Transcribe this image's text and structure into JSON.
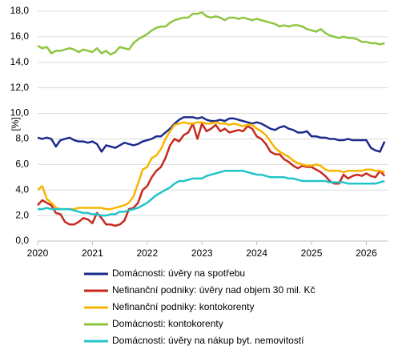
{
  "chart_data": {
    "type": "line",
    "y_label": "[%]",
    "x": [
      2020,
      2020.083,
      2020.167,
      2020.25,
      2020.333,
      2020.417,
      2020.5,
      2020.583,
      2020.667,
      2020.75,
      2020.833,
      2020.917,
      2021,
      2021.083,
      2021.167,
      2021.25,
      2021.333,
      2021.417,
      2021.5,
      2021.583,
      2021.667,
      2021.75,
      2021.833,
      2021.917,
      2022,
      2022.083,
      2022.167,
      2022.25,
      2022.333,
      2022.417,
      2022.5,
      2022.583,
      2022.667,
      2022.75,
      2022.833,
      2022.917,
      2023,
      2023.083,
      2023.167,
      2023.25,
      2023.333,
      2023.417,
      2023.5,
      2023.583,
      2023.667,
      2023.75,
      2023.833,
      2023.917,
      2024,
      2024.083,
      2024.167,
      2024.25,
      2024.333,
      2024.417,
      2024.5,
      2024.583,
      2024.667,
      2024.75,
      2024.833,
      2024.917,
      2025,
      2025.083,
      2025.167,
      2025.25,
      2025.333,
      2025.417,
      2025.5,
      2025.583,
      2025.667,
      2025.75,
      2025.833,
      2025.917,
      2026,
      2026.083,
      2026.167,
      2026.25,
      2026.333
    ],
    "xlim": [
      2020,
      2026.4
    ],
    "xticks": [
      2020,
      2021,
      2022,
      2023,
      2024,
      2025,
      2026
    ],
    "ylim": [
      0,
      18
    ],
    "yticks": [
      {
        "value": 0,
        "label": "0,0"
      },
      {
        "value": 2,
        "label": "2,0"
      },
      {
        "value": 4,
        "label": "4,0"
      },
      {
        "value": 6,
        "label": "6,0"
      },
      {
        "value": 8,
        "label": "8,0"
      },
      {
        "value": 10,
        "label": "10,0"
      },
      {
        "value": 12,
        "label": "12,0"
      },
      {
        "value": 14,
        "label": "14,0"
      },
      {
        "value": 16,
        "label": "16,0"
      },
      {
        "value": 18,
        "label": "18,0"
      }
    ],
    "grid": true,
    "series": [
      {
        "name": "Domácnosti: úvěry na spotřebu",
        "color": "#1f2a8f",
        "values": [
          8.1,
          8.0,
          8.1,
          8.0,
          7.4,
          7.9,
          8.0,
          8.1,
          7.9,
          7.8,
          7.8,
          7.7,
          7.8,
          7.6,
          7.0,
          7.5,
          7.4,
          7.3,
          7.5,
          7.7,
          7.6,
          7.5,
          7.6,
          7.8,
          7.9,
          8.0,
          8.2,
          8.2,
          8.5,
          8.8,
          9.2,
          9.5,
          9.7,
          9.7,
          9.7,
          9.6,
          9.7,
          9.5,
          9.4,
          9.4,
          9.5,
          9.4,
          9.6,
          9.6,
          9.5,
          9.4,
          9.3,
          9.2,
          9.3,
          9.2,
          9.0,
          8.8,
          8.7,
          8.9,
          9.0,
          8.8,
          8.7,
          8.5,
          8.5,
          8.6,
          8.2,
          8.2,
          8.1,
          8.1,
          8.0,
          8.0,
          7.9,
          7.9,
          8.0,
          7.9,
          7.9,
          7.9,
          7.9,
          7.3,
          7.1,
          7.0,
          7.8
        ]
      },
      {
        "name": "Nefinanční podniky: úvěry nad objem 30 mil. Kč",
        "color": "#c62a1e",
        "values": [
          2.8,
          3.2,
          3.0,
          2.8,
          2.2,
          2.1,
          1.5,
          1.3,
          1.3,
          1.5,
          1.8,
          1.7,
          1.4,
          2.2,
          1.8,
          1.3,
          1.3,
          1.2,
          1.3,
          1.6,
          2.5,
          2.6,
          3.0,
          4.0,
          4.3,
          5.0,
          5.5,
          5.8,
          6.5,
          7.5,
          8.0,
          7.8,
          8.3,
          8.5,
          9.2,
          8.0,
          9.2,
          8.6,
          8.8,
          9.1,
          8.6,
          8.8,
          8.5,
          8.6,
          8.7,
          8.6,
          9.0,
          8.8,
          8.2,
          8.0,
          7.6,
          7.0,
          6.8,
          6.8,
          6.4,
          6.2,
          5.9,
          5.7,
          5.9,
          5.8,
          5.8,
          5.6,
          5.4,
          5.1,
          4.7,
          4.5,
          4.5,
          5.2,
          4.9,
          5.1,
          5.2,
          5.1,
          5.3,
          5.1,
          5.0,
          5.5,
          5.1
        ]
      },
      {
        "name": "Nefinanční podniky: kontokorenty",
        "color": "#f7b500",
        "values": [
          4.0,
          4.3,
          3.3,
          3.0,
          2.6,
          2.5,
          2.5,
          2.5,
          2.5,
          2.6,
          2.6,
          2.6,
          2.6,
          2.6,
          2.6,
          2.5,
          2.5,
          2.6,
          2.7,
          2.8,
          3.0,
          3.5,
          4.5,
          5.6,
          5.8,
          6.5,
          6.7,
          7.2,
          8.0,
          8.6,
          9.1,
          9.2,
          9.3,
          9.2,
          9.2,
          9.3,
          9.3,
          9.2,
          9.2,
          9.3,
          9.2,
          9.2,
          9.1,
          9.2,
          9.1,
          9.0,
          9.1,
          9.1,
          8.8,
          8.6,
          8.3,
          7.8,
          7.3,
          7.0,
          6.8,
          6.6,
          6.3,
          6.1,
          6.0,
          5.9,
          5.9,
          6.0,
          5.9,
          5.6,
          5.5,
          5.5,
          5.5,
          5.4,
          5.5,
          5.5,
          5.5,
          5.5,
          5.6,
          5.6,
          5.5,
          5.5,
          5.4
        ]
      },
      {
        "name": "Domácnosti: kontokorenty",
        "color": "#8dc63f",
        "values": [
          15.3,
          15.1,
          15.2,
          14.7,
          14.9,
          14.9,
          15.0,
          15.1,
          15.0,
          14.8,
          15.0,
          14.9,
          14.8,
          15.1,
          14.7,
          14.9,
          14.6,
          14.8,
          15.2,
          15.1,
          15.0,
          15.5,
          15.8,
          16.0,
          16.2,
          16.5,
          16.7,
          16.8,
          16.8,
          17.1,
          17.3,
          17.4,
          17.5,
          17.5,
          17.8,
          17.8,
          17.9,
          17.6,
          17.5,
          17.6,
          17.5,
          17.3,
          17.5,
          17.5,
          17.4,
          17.5,
          17.4,
          17.3,
          17.4,
          17.3,
          17.2,
          17.1,
          17.0,
          16.8,
          16.9,
          16.8,
          16.9,
          16.9,
          16.8,
          16.6,
          16.5,
          16.4,
          16.6,
          16.3,
          16.1,
          16.0,
          15.9,
          16.0,
          15.9,
          15.9,
          15.8,
          15.6,
          15.6,
          15.5,
          15.5,
          15.4,
          15.5
        ]
      },
      {
        "name": "Domácnosti: úvěry na nákup byt. nemovitostí",
        "color": "#22c4c8",
        "values": [
          2.5,
          2.5,
          2.6,
          2.5,
          2.5,
          2.5,
          2.5,
          2.5,
          2.4,
          2.3,
          2.2,
          2.2,
          2.1,
          2.1,
          2.0,
          2.0,
          2.1,
          2.1,
          2.3,
          2.3,
          2.4,
          2.5,
          2.6,
          2.8,
          3.0,
          3.3,
          3.6,
          3.8,
          4.0,
          4.2,
          4.5,
          4.7,
          4.7,
          4.8,
          4.9,
          4.9,
          4.9,
          5.1,
          5.2,
          5.3,
          5.4,
          5.5,
          5.5,
          5.5,
          5.5,
          5.5,
          5.4,
          5.3,
          5.2,
          5.2,
          5.1,
          5.0,
          5.0,
          5.0,
          5.0,
          4.9,
          4.9,
          4.8,
          4.7,
          4.7,
          4.7,
          4.7,
          4.7,
          4.7,
          4.6,
          4.6,
          4.6,
          4.6,
          4.5,
          4.5,
          4.5,
          4.5,
          4.5,
          4.5,
          4.5,
          4.6,
          4.7
        ]
      }
    ]
  }
}
